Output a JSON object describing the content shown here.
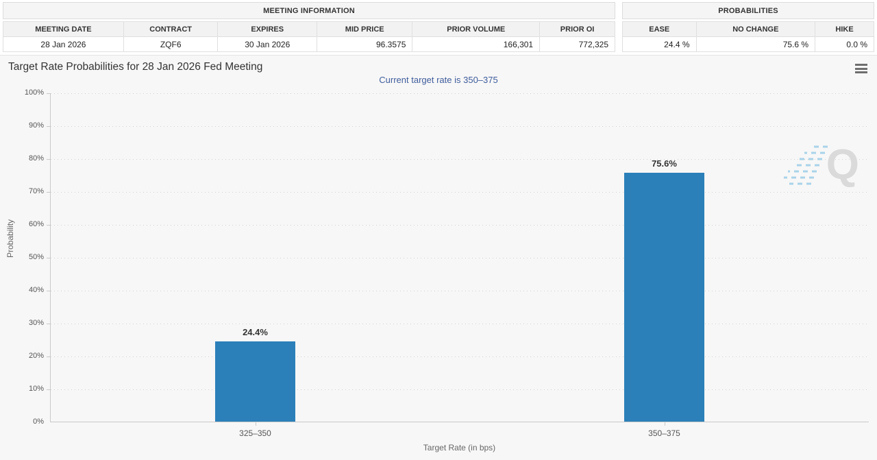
{
  "meeting_info": {
    "title": "MEETING INFORMATION",
    "columns": [
      "MEETING DATE",
      "CONTRACT",
      "EXPIRES",
      "MID PRICE",
      "PRIOR VOLUME",
      "PRIOR OI"
    ],
    "values": [
      "28 Jan 2026",
      "ZQF6",
      "30 Jan 2026",
      "96.3575",
      "166,301",
      "772,325"
    ]
  },
  "probabilities": {
    "title": "PROBABILITIES",
    "columns": [
      "EASE",
      "NO CHANGE",
      "HIKE"
    ],
    "values": [
      "24.4 %",
      "75.6 %",
      "0.0 %"
    ]
  },
  "chart_data": {
    "type": "bar",
    "title": "Target Rate Probabilities for 28 Jan 2026 Fed Meeting",
    "subtitle": "Current target rate is 350–375",
    "categories": [
      "325–350",
      "350–375"
    ],
    "values": [
      24.4,
      75.6
    ],
    "data_labels": [
      "24.4%",
      "75.6%"
    ],
    "xlabel": "Target Rate (in bps)",
    "ylabel": "Probability",
    "ylim": [
      0,
      100
    ],
    "ytick_step": 10,
    "ytick_labels": [
      "100%",
      "90%",
      "80%",
      "70%",
      "60%",
      "50%",
      "40%",
      "30%",
      "20%",
      "10%",
      "0%"
    ],
    "grid": "dotted horizontal",
    "legend": "none",
    "bar_color": "#2b80b9",
    "watermark_letter": "Q"
  },
  "icons": {
    "menu": "hamburger-menu-icon",
    "watermark": "quikstrike-q-watermark"
  }
}
